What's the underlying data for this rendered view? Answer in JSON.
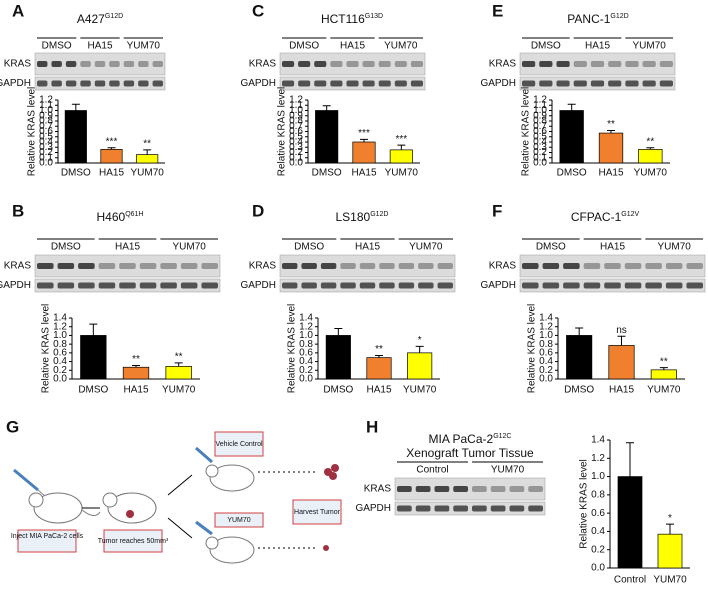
{
  "chart_data": [
    {
      "type": "bar",
      "panel": "A",
      "title": "A427",
      "title_sup": "G12D",
      "blot": {
        "groups": [
          "DMSO",
          "HA15",
          "YUM70"
        ],
        "rows": [
          "KRAS",
          "GAPDH"
        ]
      },
      "ylabel": "Relative KRAS level",
      "categories": [
        "DMSO",
        "HA15",
        "YUM70"
      ],
      "values": [
        1.0,
        0.26,
        0.16
      ],
      "errors": [
        0.12,
        0.03,
        0.09
      ],
      "annotations": [
        null,
        "***",
        "**"
      ],
      "colors": [
        "#000000",
        "#f0802e",
        "#ffff00"
      ],
      "ylim": [
        0,
        1.2
      ],
      "yticks": [
        {
          "value": 0,
          "label": "0.0"
        },
        {
          "value": 0.1,
          "label": "0.1"
        },
        {
          "value": 0.2,
          "label": "0.2"
        },
        {
          "value": 0.3,
          "label": "0.3"
        },
        {
          "value": 0.4,
          "label": "0.4"
        },
        {
          "value": 0.5,
          "label": "0.5"
        },
        {
          "value": 0.6,
          "label": "0.6"
        },
        {
          "value": 0.7,
          "label": "0.7"
        },
        {
          "value": 0.8,
          "label": "0.8"
        },
        {
          "value": 0.9,
          "label": "0.9"
        },
        {
          "value": 1.0,
          "label": "1.0"
        },
        {
          "value": 1.1,
          "label": "1.1"
        },
        {
          "value": 1.2,
          "label": "1.2"
        }
      ]
    },
    {
      "type": "bar",
      "panel": "C",
      "title": "HCT116",
      "title_sup": "G13D",
      "blot": {
        "groups": [
          "DMSO",
          "HA15",
          "YUM70"
        ],
        "rows": [
          "KRAS",
          "GAPDH"
        ]
      },
      "ylabel": "Relative KRAS level",
      "categories": [
        "DMSO",
        "HA15",
        "YUM70"
      ],
      "values": [
        1.0,
        0.4,
        0.25
      ],
      "errors": [
        0.09,
        0.05,
        0.09
      ],
      "annotations": [
        null,
        "***",
        "***"
      ],
      "colors": [
        "#000000",
        "#f0802e",
        "#ffff00"
      ],
      "ylim": [
        0,
        1.2
      ],
      "yticks": [
        {
          "value": 0,
          "label": "0.0"
        },
        {
          "value": 0.1,
          "label": "0.1"
        },
        {
          "value": 0.2,
          "label": "0.2"
        },
        {
          "value": 0.3,
          "label": "0.3"
        },
        {
          "value": 0.4,
          "label": "0.4"
        },
        {
          "value": 0.5,
          "label": "0.5"
        },
        {
          "value": 0.6,
          "label": "0.6"
        },
        {
          "value": 0.7,
          "label": "0.7"
        },
        {
          "value": 0.8,
          "label": "0.8"
        },
        {
          "value": 0.9,
          "label": "0.9"
        },
        {
          "value": 1.0,
          "label": "1.0"
        },
        {
          "value": 1.1,
          "label": "1.1"
        },
        {
          "value": 1.2,
          "label": "1.2"
        }
      ]
    },
    {
      "type": "bar",
      "panel": "E",
      "title": "PANC-1",
      "title_sup": "G12D",
      "blot": {
        "groups": [
          "DMSO",
          "HA15",
          "YUM70"
        ],
        "rows": [
          "KRAS",
          "GAPDH"
        ]
      },
      "ylabel": "Relative KRAS level",
      "categories": [
        "DMSO",
        "HA15",
        "YUM70"
      ],
      "values": [
        1.0,
        0.57,
        0.26
      ],
      "errors": [
        0.12,
        0.05,
        0.03
      ],
      "annotations": [
        null,
        "**",
        "**"
      ],
      "colors": [
        "#000000",
        "#f0802e",
        "#ffff00"
      ],
      "ylim": [
        0,
        1.2
      ],
      "yticks": [
        {
          "value": 0,
          "label": "0.0"
        },
        {
          "value": 0.1,
          "label": "0.1"
        },
        {
          "value": 0.2,
          "label": "0.2"
        },
        {
          "value": 0.3,
          "label": "0.3"
        },
        {
          "value": 0.4,
          "label": "0.4"
        },
        {
          "value": 0.5,
          "label": "0.5"
        },
        {
          "value": 0.6,
          "label": "0.6"
        },
        {
          "value": 0.7,
          "label": "0.7"
        },
        {
          "value": 0.8,
          "label": "0.8"
        },
        {
          "value": 0.9,
          "label": "0.9"
        },
        {
          "value": 1.0,
          "label": "1.0"
        },
        {
          "value": 1.1,
          "label": "1.1"
        },
        {
          "value": 1.2,
          "label": "1.2"
        }
      ]
    },
    {
      "type": "bar",
      "panel": "B",
      "title": "H460",
      "title_sup": "Q61H",
      "blot": {
        "groups": [
          "DMSO",
          "HA15",
          "YUM70"
        ],
        "rows": [
          "KRAS",
          "GAPDH"
        ]
      },
      "ylabel": "Relative KRAS level",
      "categories": [
        "DMSO",
        "HA15",
        "YUM70"
      ],
      "values": [
        1.0,
        0.27,
        0.29
      ],
      "errors": [
        0.26,
        0.04,
        0.08
      ],
      "annotations": [
        null,
        "**",
        "**"
      ],
      "colors": [
        "#000000",
        "#f0802e",
        "#ffff00"
      ],
      "ylim": [
        0,
        1.4
      ],
      "yticks": [
        {
          "value": 0,
          "label": "0.0"
        },
        {
          "value": 0.2,
          "label": "0.2"
        },
        {
          "value": 0.4,
          "label": "0.4"
        },
        {
          "value": 0.6,
          "label": "0.6"
        },
        {
          "value": 0.8,
          "label": "0.8"
        },
        {
          "value": 1.0,
          "label": "1.0"
        },
        {
          "value": 1.2,
          "label": "1.2"
        },
        {
          "value": 1.4,
          "label": "1.4"
        }
      ]
    },
    {
      "type": "bar",
      "panel": "D",
      "title": "LS180",
      "title_sup": "G12D",
      "blot": {
        "groups": [
          "DMSO",
          "HA15",
          "YUM70"
        ],
        "rows": [
          "KRAS",
          "GAPDH"
        ]
      },
      "ylabel": "Relative KRAS level",
      "categories": [
        "DMSO",
        "HA15",
        "YUM70"
      ],
      "values": [
        1.0,
        0.49,
        0.6
      ],
      "errors": [
        0.16,
        0.05,
        0.15
      ],
      "annotations": [
        null,
        "**",
        "*"
      ],
      "colors": [
        "#000000",
        "#f0802e",
        "#ffff00"
      ],
      "ylim": [
        0,
        1.4
      ],
      "yticks": [
        {
          "value": 0,
          "label": "0.0"
        },
        {
          "value": 0.2,
          "label": "0.2"
        },
        {
          "value": 0.4,
          "label": "0.4"
        },
        {
          "value": 0.6,
          "label": "0.6"
        },
        {
          "value": 0.8,
          "label": "0.8"
        },
        {
          "value": 1.0,
          "label": "1.0"
        },
        {
          "value": 1.2,
          "label": "1.2"
        },
        {
          "value": 1.4,
          "label": "1.4"
        }
      ]
    },
    {
      "type": "bar",
      "panel": "F",
      "title": "CFPAC-1",
      "title_sup": "G12V",
      "blot": {
        "groups": [
          "DMSO",
          "HA15",
          "YUM70"
        ],
        "rows": [
          "KRAS",
          "GAPDH"
        ]
      },
      "ylabel": "Relative KRAS level",
      "categories": [
        "DMSO",
        "HA15",
        "YUM70"
      ],
      "values": [
        1.0,
        0.77,
        0.21
      ],
      "errors": [
        0.17,
        0.21,
        0.05
      ],
      "annotations": [
        null,
        "ns",
        "**"
      ],
      "colors": [
        "#000000",
        "#f0802e",
        "#ffff00"
      ],
      "ylim": [
        0,
        1.4
      ],
      "yticks": [
        {
          "value": 0,
          "label": "0.0"
        },
        {
          "value": 0.2,
          "label": "0.2"
        },
        {
          "value": 0.4,
          "label": "0.4"
        },
        {
          "value": 0.6,
          "label": "0.6"
        },
        {
          "value": 0.8,
          "label": "0.8"
        },
        {
          "value": 1.0,
          "label": "1.0"
        },
        {
          "value": 1.2,
          "label": "1.2"
        },
        {
          "value": 1.4,
          "label": "1.4"
        }
      ]
    },
    {
      "type": "bar",
      "panel": "H",
      "title": "MIA PaCa-2",
      "title_sup": "G12C",
      "title2": "Xenograft Tumor Tissue",
      "blot": {
        "groups": [
          "Control",
          "YUM70"
        ],
        "rows": [
          "KRAS",
          "GAPDH"
        ]
      },
      "ylabel": "Relative KRAS level",
      "categories": [
        "Control",
        "YUM70"
      ],
      "values": [
        1.0,
        0.37
      ],
      "errors": [
        0.37,
        0.11
      ],
      "annotations": [
        null,
        "*"
      ],
      "colors": [
        "#000000",
        "#ffff00"
      ],
      "ylim": [
        0,
        1.4
      ],
      "yticks": [
        {
          "value": 0,
          "label": "0.0"
        },
        {
          "value": 0.2,
          "label": "0.2"
        },
        {
          "value": 0.4,
          "label": "0.4"
        },
        {
          "value": 0.6,
          "label": "0.6"
        },
        {
          "value": 0.8,
          "label": "0.8"
        },
        {
          "value": 1.0,
          "label": "1.0"
        },
        {
          "value": 1.2,
          "label": "1.2"
        },
        {
          "value": 1.4,
          "label": "1.4"
        }
      ]
    }
  ],
  "diagram": {
    "panel": "G",
    "steps": [
      "Inject MIA PaCa-2 cells",
      "Tumor reaches 50mm³",
      "Vehicle Control",
      "YUM70",
      "Harvest Tumor"
    ]
  }
}
